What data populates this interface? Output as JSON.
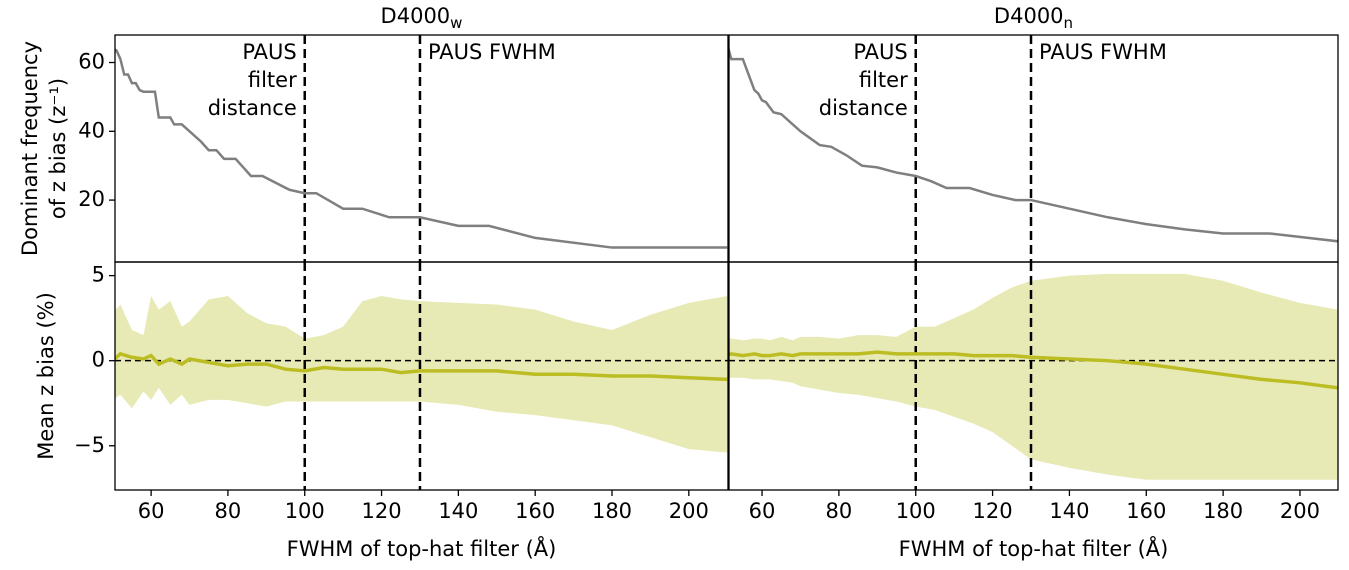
{
  "chart_data": [
    {
      "type": "line",
      "title": "D4000",
      "title_subscript": "w",
      "ylabel": [
        "Dominant frequency",
        "of z bias (z⁻¹)"
      ],
      "xlim": [
        50.6,
        210.2
      ],
      "ylim": [
        2,
        68
      ],
      "yticks": [
        20,
        40,
        60
      ],
      "vlines": [
        100,
        130
      ],
      "annotations": [
        [
          "PAUS",
          "filter",
          "distance"
        ],
        [
          "PAUS FWHM"
        ]
      ],
      "color": "#7f7f7f",
      "x": [
        50,
        51,
        52,
        53,
        54,
        55,
        56,
        57,
        58,
        61,
        62,
        65,
        66,
        68,
        73,
        75,
        77,
        79,
        82,
        86,
        89,
        96,
        100,
        103,
        110,
        115,
        122,
        130,
        140,
        148,
        160,
        180,
        210
      ],
      "values": [
        64,
        63.5,
        61,
        56.5,
        56.5,
        54,
        54,
        52,
        51.5,
        51.5,
        44,
        44,
        42,
        42,
        37,
        34.5,
        34.5,
        32,
        32,
        27,
        27,
        23,
        22,
        22,
        17.5,
        17.5,
        15,
        15,
        12.5,
        12.5,
        9,
        6.2,
        6.2
      ]
    },
    {
      "type": "band",
      "ylabel": [
        "Mean z bias (%)"
      ],
      "xlabel": "FWHM of top-hat filter (Å)",
      "xlim": [
        50.6,
        210.2
      ],
      "ylim": [
        -7.6,
        5.8
      ],
      "yticks": [
        {
          "value": -5,
          "label": "−5"
        },
        0,
        5
      ],
      "xticks": [
        60,
        80,
        100,
        120,
        140,
        160,
        180,
        200
      ],
      "vlines": [
        100,
        130
      ],
      "hline": 0,
      "color": "#bcbd22",
      "band_color": "#e8eab6",
      "x": [
        50,
        52,
        55,
        58,
        60,
        62,
        65,
        68,
        70,
        75,
        80,
        85,
        90,
        95,
        100,
        105,
        110,
        115,
        120,
        125,
        130,
        140,
        150,
        160,
        170,
        180,
        190,
        200,
        210
      ],
      "values": [
        0,
        0.4,
        0.2,
        0.1,
        0.3,
        -0.2,
        0.1,
        -0.2,
        0.1,
        -0.1,
        -0.3,
        -0.2,
        -0.2,
        -0.5,
        -0.6,
        -0.4,
        -0.5,
        -0.5,
        -0.5,
        -0.7,
        -0.6,
        -0.6,
        -0.6,
        -0.8,
        -0.8,
        -0.9,
        -0.9,
        -1,
        -1.1
      ],
      "upper": [
        2.8,
        3.3,
        1.8,
        1.5,
        3.8,
        3,
        3.5,
        2,
        2.3,
        3.6,
        3.8,
        2.8,
        2.2,
        2,
        1.3,
        1.5,
        2,
        3.5,
        3.8,
        3.6,
        3.5,
        3.4,
        3.3,
        3,
        2.3,
        1.8,
        2.7,
        3.4,
        3.8
      ],
      "lower": [
        -2.3,
        -2,
        -2.8,
        -1.8,
        -2.3,
        -1.6,
        -2.6,
        -2,
        -2.6,
        -2.3,
        -2.3,
        -2.5,
        -2.7,
        -2.4,
        -2.4,
        -2.4,
        -2.4,
        -2.4,
        -2.4,
        -2.4,
        -2.4,
        -2.6,
        -3,
        -3.2,
        -3.5,
        -3.8,
        -4.5,
        -5.2,
        -5.4
      ]
    },
    {
      "type": "line",
      "title": "D4000",
      "title_subscript": "n",
      "xlim": [
        51.4,
        209.9
      ],
      "ylim": [
        2,
        68
      ],
      "vlines": [
        100,
        130
      ],
      "annotations": [
        [
          "PAUS",
          "filter",
          "distance"
        ],
        [
          "PAUS FWHM"
        ]
      ],
      "color": "#7f7f7f",
      "x": [
        50,
        51,
        52,
        55,
        56,
        57,
        58,
        59,
        60,
        61,
        62,
        63,
        65,
        70,
        75,
        78,
        82,
        86,
        90,
        95,
        100,
        104,
        108,
        114,
        120,
        126,
        130,
        140,
        150,
        160,
        170,
        180,
        192,
        210
      ],
      "values": [
        65,
        65,
        61,
        61,
        58,
        55,
        52,
        51,
        49,
        48.5,
        47,
        45.5,
        45,
        40,
        36,
        35.5,
        33,
        30,
        29.5,
        28,
        27,
        25.5,
        23.5,
        23.5,
        21.5,
        20,
        20,
        17.5,
        15,
        13,
        11.5,
        10.3,
        10.3,
        8
      ]
    },
    {
      "type": "band",
      "xlabel": "FWHM of top-hat filter (Å)",
      "xlim": [
        51.4,
        209.9
      ],
      "ylim": [
        -7.6,
        5.8
      ],
      "xticks": [
        60,
        80,
        100,
        120,
        140,
        160,
        180,
        200
      ],
      "vlines": [
        100,
        130
      ],
      "hline": 0,
      "color": "#bcbd22",
      "band_color": "#e8eab6",
      "x": [
        50,
        52,
        55,
        58,
        60,
        62,
        65,
        68,
        70,
        75,
        80,
        85,
        90,
        95,
        100,
        105,
        110,
        115,
        120,
        125,
        130,
        140,
        150,
        160,
        170,
        180,
        190,
        200,
        210
      ],
      "values": [
        0.3,
        0.4,
        0.3,
        0.4,
        0.3,
        0.3,
        0.4,
        0.3,
        0.4,
        0.4,
        0.4,
        0.4,
        0.5,
        0.4,
        0.4,
        0.4,
        0.4,
        0.3,
        0.3,
        0.3,
        0.2,
        0.1,
        0,
        -0.2,
        -0.5,
        -0.8,
        -1.1,
        -1.3,
        -1.6
      ],
      "upper": [
        1.5,
        1.3,
        1.2,
        1.3,
        1.3,
        1.2,
        1.4,
        1.2,
        1.4,
        1.4,
        1.3,
        1.5,
        1.5,
        1.4,
        2,
        2,
        2.5,
        3,
        3.7,
        4.3,
        4.7,
        5,
        5.1,
        5.1,
        5.1,
        4.7,
        4,
        3.4,
        3
      ],
      "lower": [
        -1.1,
        -1,
        -1,
        -1.1,
        -1.1,
        -1.1,
        -1.2,
        -1.3,
        -1.5,
        -1.7,
        -1.9,
        -2,
        -2.2,
        -2.4,
        -2.7,
        -2.9,
        -3.3,
        -3.7,
        -4.2,
        -5,
        -5.8,
        -6.3,
        -6.7,
        -7,
        -7,
        -7,
        -7,
        -7,
        -7
      ]
    }
  ]
}
